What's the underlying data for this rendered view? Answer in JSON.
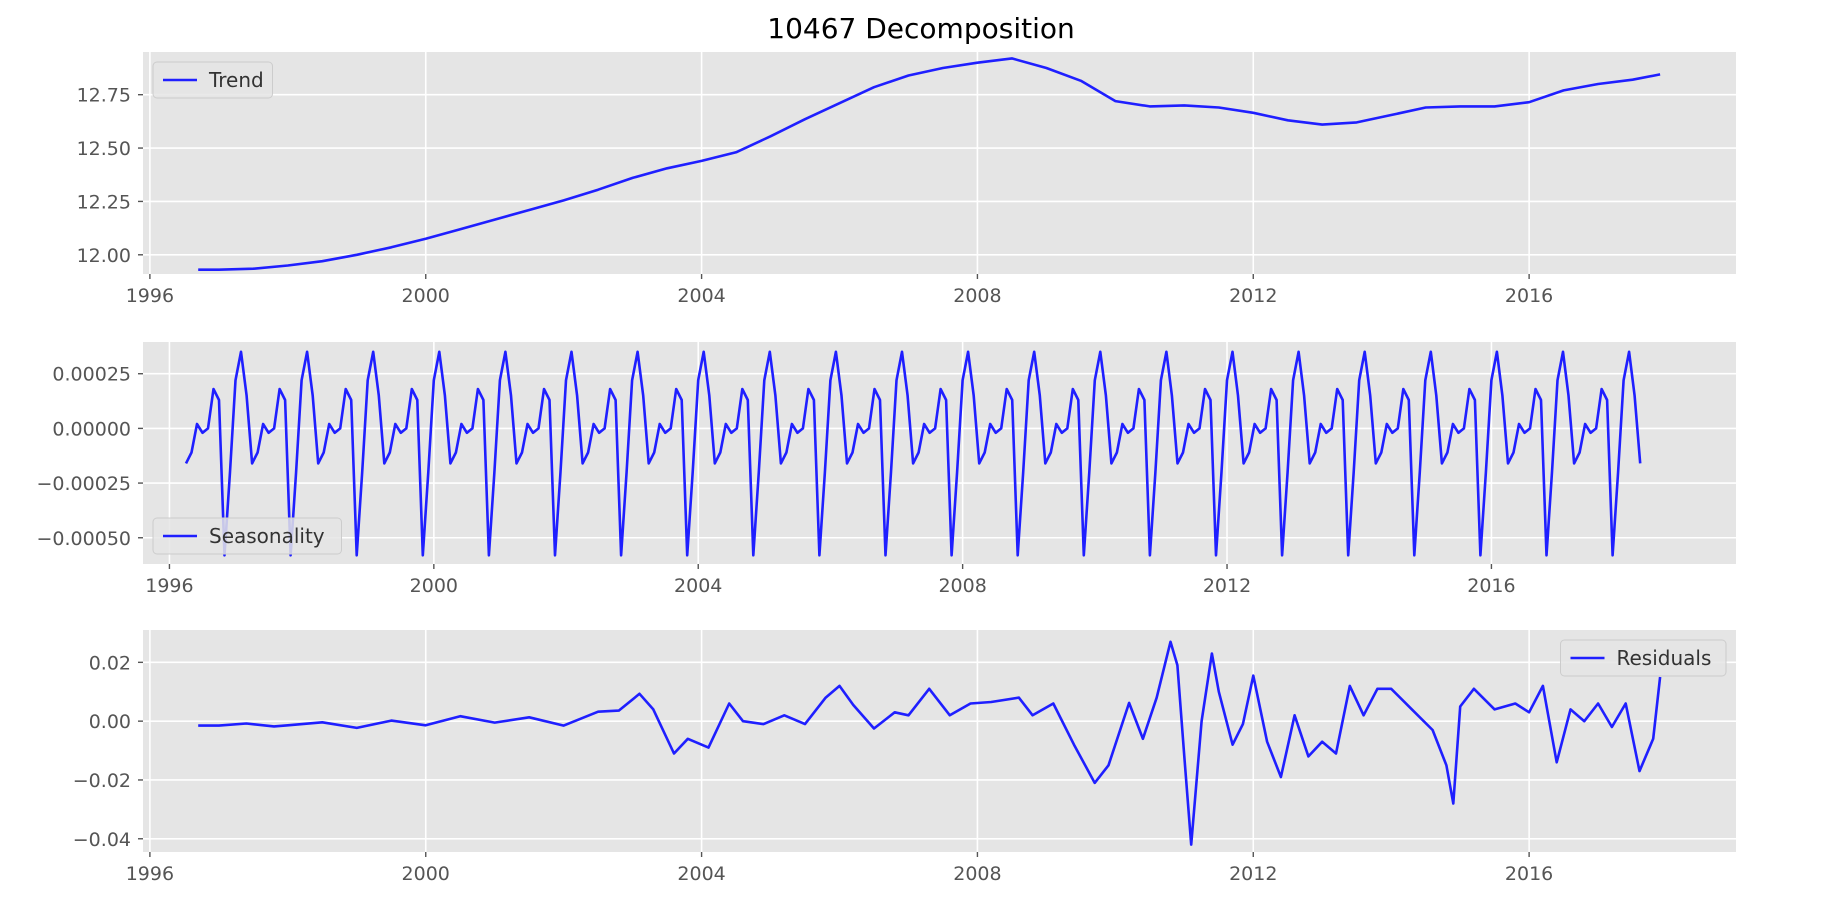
{
  "figure": {
    "title": "10467 Decomposition"
  },
  "colors": {
    "line": "#1f1fff",
    "panel_bg": "#e5e5e5",
    "grid": "#ffffff"
  },
  "chart_data": [
    {
      "type": "line",
      "name": "trend",
      "legend": {
        "label": "Trend",
        "position": "upper-left"
      },
      "grid": true,
      "xlim": [
        1995.9,
        2019.0
      ],
      "ylim": [
        11.91,
        12.95
      ],
      "xticks": [
        1996,
        2000,
        2004,
        2008,
        2012,
        2016
      ],
      "xtick_labels": [
        "1996",
        "2000",
        "2004",
        "2008",
        "2012",
        "2016"
      ],
      "yticks": [
        12.0,
        12.25,
        12.5,
        12.75
      ],
      "ytick_labels": [
        "12.00",
        "12.25",
        "12.50",
        "12.75"
      ],
      "series": [
        {
          "name": "Trend",
          "x": [
            1996.7,
            1997.0,
            1997.5,
            1998.0,
            1998.5,
            1999.0,
            1999.5,
            2000.0,
            2000.5,
            2001.0,
            2001.5,
            2002.0,
            2002.5,
            2003.0,
            2003.5,
            2004.0,
            2004.5,
            2005.0,
            2005.5,
            2006.0,
            2006.5,
            2007.0,
            2007.5,
            2008.0,
            2008.5,
            2009.0,
            2009.5,
            2010.0,
            2010.5,
            2011.0,
            2011.5,
            2012.0,
            2012.5,
            2013.0,
            2013.5,
            2014.0,
            2014.5,
            2015.0,
            2015.5,
            2016.0,
            2016.5,
            2017.0,
            2017.5,
            2017.9
          ],
          "values": [
            11.93,
            11.93,
            11.935,
            11.95,
            11.97,
            12.0,
            12.035,
            12.075,
            12.12,
            12.165,
            12.21,
            12.255,
            12.305,
            12.36,
            12.405,
            12.44,
            12.48,
            12.555,
            12.635,
            12.71,
            12.785,
            12.84,
            12.875,
            12.9,
            12.92,
            12.875,
            12.815,
            12.72,
            12.695,
            12.7,
            12.69,
            12.665,
            12.63,
            12.61,
            12.62,
            12.655,
            12.69,
            12.695,
            12.695,
            12.715,
            12.77,
            12.8,
            12.82,
            12.845
          ]
        }
      ]
    },
    {
      "type": "line",
      "name": "seasonality",
      "legend": {
        "label": "Seasonality",
        "position": "lower-left"
      },
      "grid": true,
      "xlim": [
        1995.6,
        2019.7
      ],
      "ylim": [
        -0.00062,
        0.000395
      ],
      "xticks": [
        1996,
        2000,
        2004,
        2008,
        2012,
        2016
      ],
      "xtick_labels": [
        "1996",
        "2000",
        "2004",
        "2008",
        "2012",
        "2016"
      ],
      "yticks": [
        -0.0005,
        -0.00025,
        0.0,
        0.00025
      ],
      "ytick_labels": [
        "−0.00050",
        "−0.00025",
        "0.00000",
        "0.00025"
      ],
      "x_start": 1996.25,
      "x_step": 0.0833333,
      "cycle_values": [
        -0.00016,
        -0.00011,
        2e-05,
        -2e-05,
        0.0,
        0.00018,
        0.00013,
        -0.00058,
        -0.0002,
        0.00022,
        0.00035,
        0.00015
      ],
      "n_points": 265
    },
    {
      "type": "line",
      "name": "residuals",
      "legend": {
        "label": "Residuals",
        "position": "upper-right"
      },
      "grid": true,
      "xlim": [
        1995.9,
        2019.0
      ],
      "ylim": [
        -0.0445,
        0.031
      ],
      "xticks": [
        1996,
        2000,
        2004,
        2008,
        2012,
        2016
      ],
      "xtick_labels": [
        "1996",
        "2000",
        "2004",
        "2008",
        "2012",
        "2016"
      ],
      "yticks": [
        -0.04,
        -0.02,
        0.0,
        0.02
      ],
      "ytick_labels": [
        "−0.04",
        "−0.02",
        "0.00",
        "0.02"
      ],
      "series": [
        {
          "name": "Residuals",
          "x": [
            1996.7,
            1997.0,
            1997.4,
            1997.8,
            1998.0,
            1998.5,
            1999.0,
            1999.5,
            2000.0,
            2000.5,
            2001.0,
            2001.5,
            2002.0,
            2002.5,
            2002.8,
            2003.1,
            2003.3,
            2003.6,
            2003.8,
            2004.1,
            2004.4,
            2004.6,
            2004.9,
            2005.2,
            2005.5,
            2005.8,
            2006.0,
            2006.2,
            2006.5,
            2006.8,
            2007.0,
            2007.3,
            2007.6,
            2007.9,
            2008.2,
            2008.6,
            2008.8,
            2009.1,
            2009.4,
            2009.7,
            2009.9,
            2010.2,
            2010.4,
            2010.6,
            2010.8,
            2010.9,
            2011.0,
            2011.1,
            2011.25,
            2011.4,
            2011.5,
            2011.7,
            2011.85,
            2012.0,
            2012.2,
            2012.4,
            2012.6,
            2012.8,
            2013.0,
            2013.2,
            2013.4,
            2013.6,
            2013.8,
            2014.0,
            2014.3,
            2014.6,
            2014.8,
            2014.9,
            2015.0,
            2015.2,
            2015.5,
            2015.8,
            2016.0,
            2016.2,
            2016.4,
            2016.6,
            2016.8,
            2017.0,
            2017.2,
            2017.4,
            2017.6,
            2017.8,
            2017.9
          ],
          "values": [
            -0.0015,
            -0.0015,
            -0.0008,
            -0.0018,
            -0.0014,
            -0.0004,
            -0.0023,
            0.0002,
            -0.0014,
            0.0017,
            -0.0005,
            0.0013,
            -0.0015,
            0.0032,
            0.0036,
            0.0093,
            0.004,
            -0.011,
            -0.006,
            -0.009,
            0.006,
            0.0,
            -0.001,
            0.002,
            -0.001,
            0.008,
            0.012,
            0.0055,
            -0.0025,
            0.003,
            0.002,
            0.011,
            0.002,
            0.006,
            0.0065,
            0.008,
            0.002,
            0.006,
            -0.008,
            -0.021,
            -0.015,
            0.0062,
            -0.006,
            0.008,
            0.027,
            0.019,
            -0.012,
            -0.042,
            0.0,
            0.023,
            0.01,
            -0.008,
            -0.001,
            0.0155,
            -0.007,
            -0.019,
            0.002,
            -0.012,
            -0.007,
            -0.011,
            0.012,
            0.002,
            0.011,
            0.011,
            0.004,
            -0.003,
            -0.015,
            -0.028,
            0.005,
            0.011,
            0.004,
            0.006,
            0.003,
            0.012,
            -0.014,
            0.004,
            0.0,
            0.006,
            -0.002,
            0.006,
            -0.017,
            -0.006,
            0.015
          ]
        }
      ]
    }
  ]
}
